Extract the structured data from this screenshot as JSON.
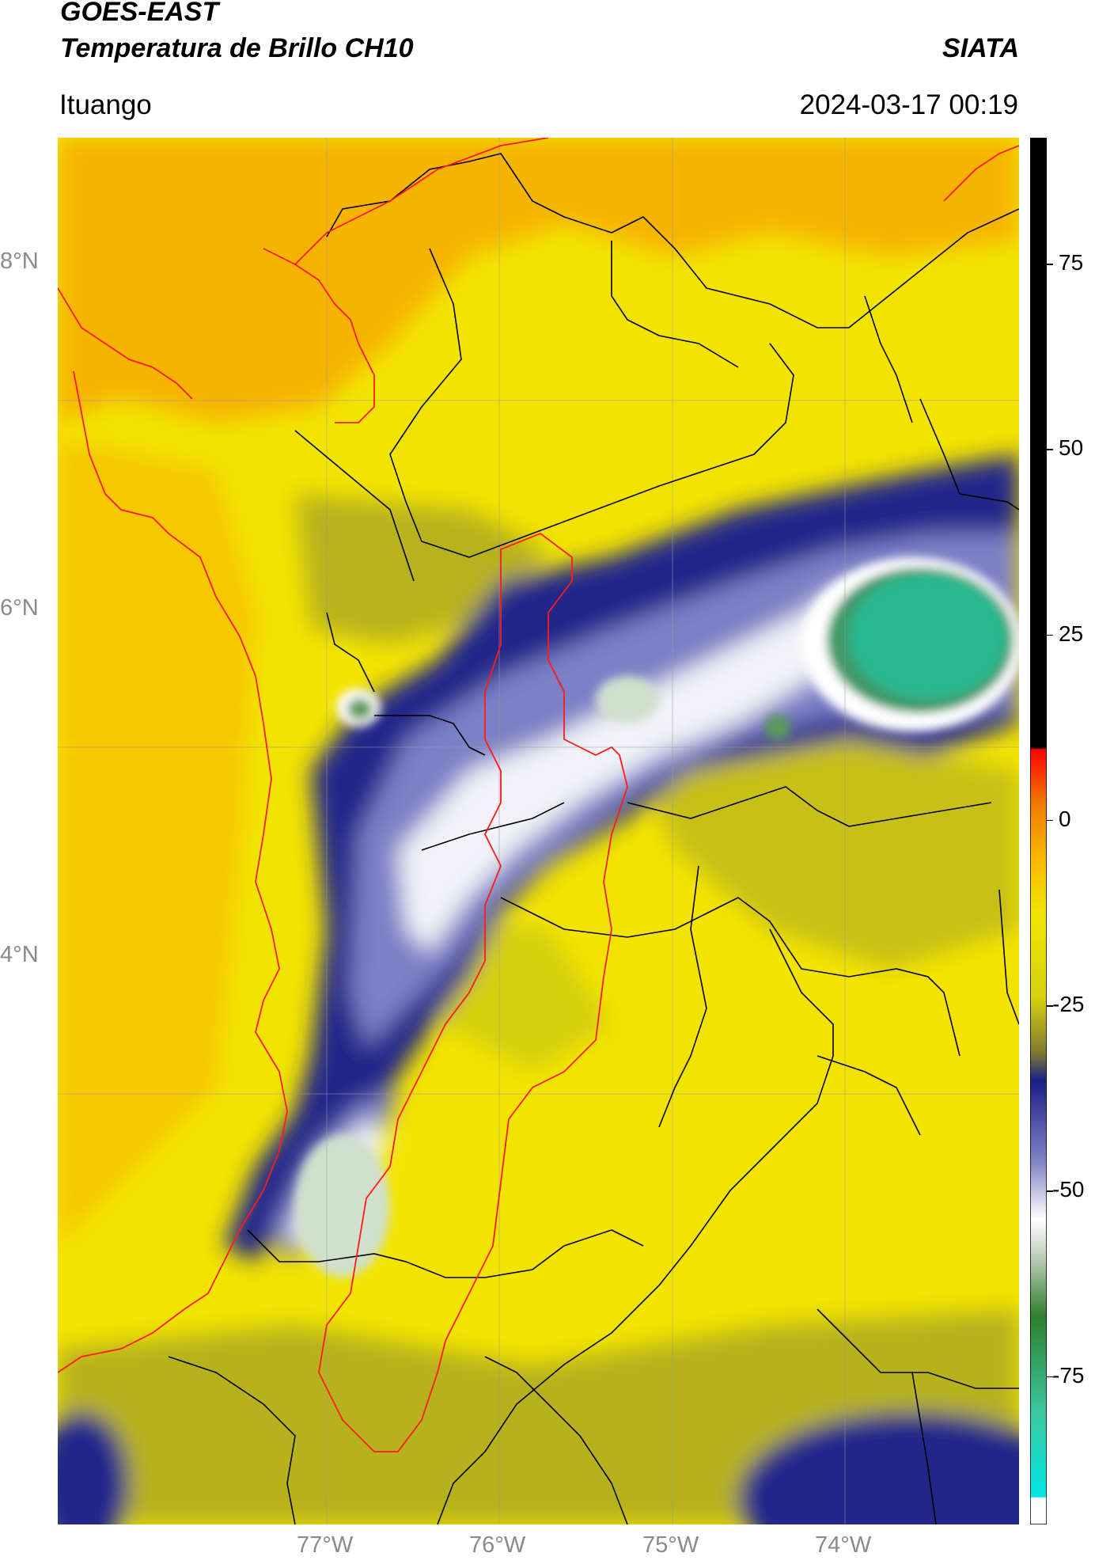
{
  "header": {
    "satellite": "GOES-EAST",
    "product": "Temperatura de Brillo CH10",
    "agency": "SIATA",
    "location": "Ituango",
    "timestamp": "2024-03-17 00:19"
  },
  "map": {
    "lat_ticks": [
      "8°N",
      "6°N",
      "4°N"
    ],
    "lon_ticks": [
      "77°W",
      "76°W",
      "75°W",
      "74°W"
    ],
    "lat_range": [
      2.3,
      9.4
    ],
    "lon_range": [
      -78.55,
      -73.0
    ],
    "gridlines": true,
    "colors": {
      "warm_background": "#f5e200",
      "warmest": "#f8a800",
      "cloud_navy": "#1c1f86",
      "cloud_mid": "#7a7fc2",
      "cloud_top": "#ffffff",
      "coldest": "#2db88c",
      "admin_borders": "#000000",
      "coast_and_highlight": "#ff0000"
    }
  },
  "colorbar": {
    "tick_labels": [
      "75",
      "50",
      "25",
      "0",
      "-25",
      "-50",
      "-75"
    ],
    "tick_values": [
      75,
      50,
      25,
      0,
      -25,
      -50,
      -75
    ],
    "range": [
      -95,
      92
    ]
  }
}
